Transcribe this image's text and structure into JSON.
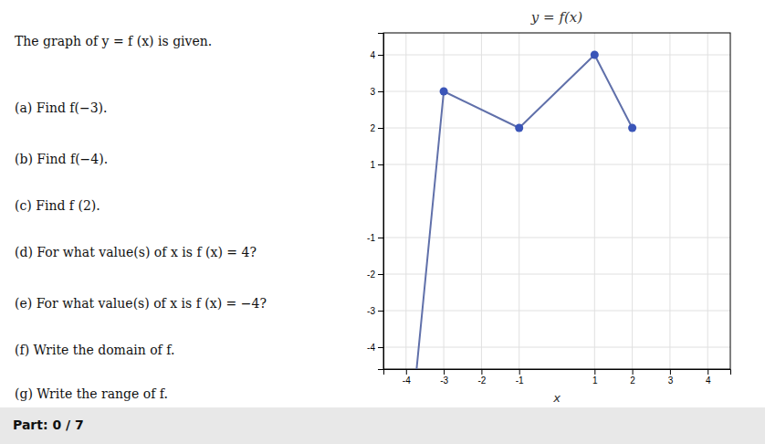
{
  "chart_data": {
    "type": "line",
    "title": "y = f(x)",
    "x_label": "x",
    "xlim": [
      -4.6,
      4.6
    ],
    "ylim": [
      -4.6,
      4.6
    ],
    "xticks": [
      -4,
      -3,
      -2,
      -1,
      1,
      2,
      3,
      4
    ],
    "yticks": [
      -4,
      -3,
      -2,
      -1,
      1,
      2,
      3,
      4
    ],
    "grid": true,
    "series": [
      {
        "type": "line",
        "color": "#6070aa",
        "x": [
          -3.72,
          -3,
          -1,
          1,
          2
        ],
        "values": [
          -4.6,
          3,
          2,
          4,
          2
        ]
      },
      {
        "type": "scatter",
        "color": "#3a55b8",
        "marker": "circle",
        "x": [
          -3,
          -1,
          1,
          2
        ],
        "values": [
          3,
          2,
          4,
          2
        ]
      }
    ],
    "annotations": [
      "The graph of y = f (x) is given.",
      "(a) Find f(−3).",
      "(b) Find f(−4).",
      "(c) Find f (2).",
      "(d) For what value(s) of x is f (x) = 4?",
      "(e) For what value(s) of x is f (x) = −4?",
      "(f) Write the domain of f.",
      "(g) Write the range of f.",
      "Part: 0 / 7"
    ]
  }
}
